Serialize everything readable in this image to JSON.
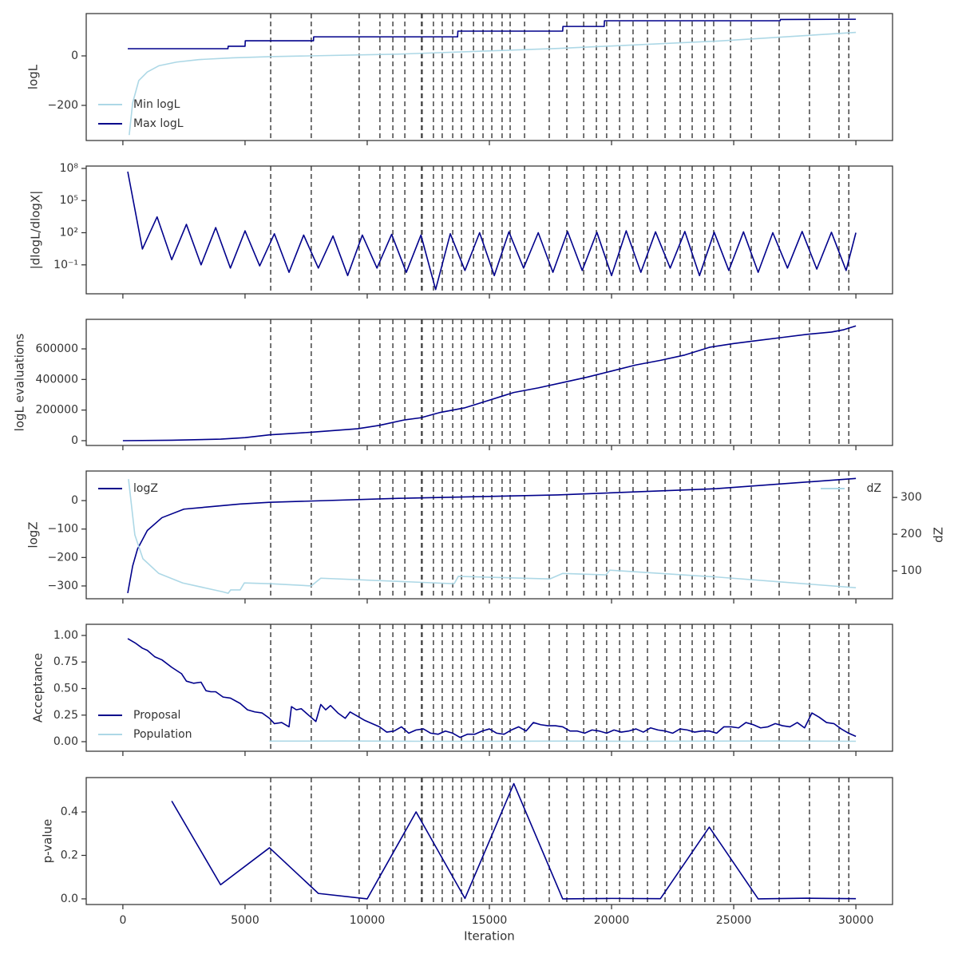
{
  "chart_data": [
    {
      "type": "line",
      "ylabel": "logL",
      "xlim": [
        -1500,
        31500
      ],
      "xticks": [
        0,
        5000,
        10000,
        15000,
        20000,
        25000,
        30000
      ],
      "ylim": [
        -342,
        171
      ],
      "yticks": [
        {
          "value": -200,
          "label": "−200"
        },
        0
      ],
      "legend": "lower left",
      "vlines": [
        6050,
        7710,
        9670,
        10520,
        11050,
        11540,
        12220,
        12250,
        12710,
        13070,
        13500,
        13860,
        14350,
        14740,
        15100,
        15520,
        15850,
        16440,
        17450,
        18170,
        18860,
        19380,
        19800,
        20330,
        20880,
        21470,
        22190,
        22810,
        23300,
        23820,
        24180,
        24870,
        25720,
        26860,
        28100,
        29310,
        29710
      ],
      "series": [
        {
          "name": "Min logL",
          "color": "#add8e6",
          "x": [
            260,
            400,
            650,
            1000,
            1470,
            2200,
            3100,
            4500,
            6050,
            11270,
            17800,
            24350,
            30000
          ],
          "values": [
            -320,
            -190,
            -100,
            -65,
            -40,
            -25,
            -15,
            -8,
            -3,
            7,
            30,
            60,
            95
          ]
        },
        {
          "name": "Max logL",
          "color": "#00008b",
          "x": [
            200,
            4300,
            4310,
            5000,
            5010,
            7800,
            7810,
            13700,
            13710,
            18000,
            18010,
            19700,
            19710,
            26900,
            26910,
            30000
          ],
          "values": [
            29,
            29,
            39,
            39,
            61,
            61,
            77,
            77,
            100,
            100,
            119,
            119,
            142,
            142,
            147,
            148
          ]
        }
      ]
    },
    {
      "type": "line",
      "ylabel": "|dlogL/dlogX|",
      "yscale": "log",
      "xlim": [
        -1500,
        31500
      ],
      "xticks": [
        0,
        5000,
        10000,
        15000,
        20000,
        25000,
        30000
      ],
      "ylim": [
        0.0002,
        166000000
      ],
      "yticks": [
        {
          "value": 0.1,
          "label": "10⁻¹"
        },
        {
          "value": 100,
          "label": "10²"
        },
        {
          "value": 100000,
          "label": "10⁵"
        },
        {
          "value": 100000000,
          "label": "10⁸"
        }
      ],
      "vlines": [
        6050,
        7710,
        9670,
        10520,
        11050,
        11540,
        12220,
        12250,
        12710,
        13070,
        13500,
        13860,
        14350,
        14740,
        15100,
        15520,
        15850,
        16440,
        17450,
        18170,
        18860,
        19380,
        19800,
        20330,
        20880,
        21470,
        22190,
        22810,
        23300,
        23820,
        24180,
        24870,
        25720,
        26860,
        28100,
        29310,
        29710
      ],
      "series": [
        {
          "color": "#00008b",
          "x": [
            200,
            800,
            1400,
            2000,
            2600,
            3200,
            3800,
            4400,
            5000,
            5600,
            6200,
            6800,
            7400,
            8000,
            8600,
            9200,
            9800,
            10400,
            11000,
            11600,
            12200,
            12800,
            13400,
            14000,
            14600,
            15200,
            15800,
            16400,
            17000,
            17600,
            18200,
            18800,
            19400,
            20000,
            20600,
            21200,
            21800,
            22400,
            23000,
            23600,
            24200,
            24800,
            25400,
            26000,
            26600,
            27200,
            27800,
            28400,
            29000,
            29600,
            30000
          ],
          "values": [
            50000000,
            3,
            3000,
            0.3,
            600,
            0.1,
            300,
            0.05,
            150,
            0.08,
            80,
            0.02,
            60,
            0.05,
            50,
            0.01,
            60,
            0.05,
            70,
            0.02,
            60,
            0.0005,
            80,
            0.03,
            100,
            0.01,
            120,
            0.05,
            100,
            0.02,
            130,
            0.03,
            110,
            0.01,
            150,
            0.02,
            120,
            0.05,
            130,
            0.01,
            110,
            0.03,
            120,
            0.02,
            100,
            0.05,
            130,
            0.04,
            110,
            0.03,
            100
          ]
        }
      ]
    },
    {
      "type": "line",
      "ylabel": "logL evaluations",
      "xlim": [
        -1500,
        31500
      ],
      "xticks": [
        0,
        5000,
        10000,
        15000,
        20000,
        25000,
        30000
      ],
      "ylim": [
        -31300,
        793000
      ],
      "yticks": [
        0,
        200000,
        400000,
        600000
      ],
      "vlines": [
        6050,
        7710,
        9670,
        10520,
        11050,
        11540,
        12220,
        12250,
        12710,
        13070,
        13500,
        13860,
        14350,
        14740,
        15100,
        15520,
        15850,
        16440,
        17450,
        18170,
        18860,
        19380,
        19800,
        20330,
        20880,
        21470,
        22190,
        22810,
        23300,
        23820,
        24180,
        24870,
        25720,
        26860,
        28100,
        29310,
        29710
      ],
      "series": [
        {
          "color": "#00008b",
          "x": [
            0,
            2000,
            4000,
            5000,
            6000,
            7700,
            9600,
            10500,
            11500,
            12200,
            13000,
            14000,
            15000,
            16000,
            17000,
            18000,
            19000,
            20000,
            21000,
            22000,
            23000,
            24000,
            25000,
            26000,
            27000,
            28000,
            29000,
            29500,
            30000
          ],
          "values": [
            0,
            3000,
            10000,
            20000,
            38000,
            55000,
            78000,
            100000,
            135000,
            150000,
            185000,
            215000,
            265000,
            315000,
            345000,
            380000,
            415000,
            455000,
            495000,
            525000,
            560000,
            610000,
            635000,
            655000,
            675000,
            695000,
            710000,
            725000,
            750000
          ]
        }
      ]
    },
    {
      "type": "line",
      "ylabel": "logZ",
      "y2label": "dZ",
      "xlim": [
        -1500,
        31500
      ],
      "xticks": [
        0,
        5000,
        10000,
        15000,
        20000,
        25000,
        30000
      ],
      "ylim": [
        -345,
        104
      ],
      "yticks": [
        {
          "value": -300,
          "label": "−300"
        },
        {
          "value": -200,
          "label": "−200"
        },
        {
          "value": -100,
          "label": "−100"
        },
        0
      ],
      "y2lim": [
        24,
        372
      ],
      "y2ticks": [
        100,
        200,
        300
      ],
      "legend": "upper left",
      "legend2": "upper right",
      "vlines": [
        6050,
        7710,
        9670,
        10520,
        11050,
        11540,
        12220,
        12250,
        12710,
        13070,
        13500,
        13860,
        14350,
        14740,
        15100,
        15520,
        15850,
        16440,
        17450,
        18170,
        18860,
        19380,
        19800,
        20330,
        20880,
        21470,
        22190,
        22810,
        23300,
        23820,
        24180,
        24870,
        25720,
        26860,
        28100,
        29310,
        29710
      ],
      "series": [
        {
          "name": "logZ",
          "color": "#00008b",
          "x": [
            200,
            400,
            600,
            1000,
            1600,
            2500,
            4800,
            6000,
            11300,
            17800,
            24300,
            30000
          ],
          "values": [
            -325,
            -230,
            -170,
            -105,
            -60,
            -30,
            -12,
            -6,
            8,
            20,
            42,
            78
          ]
        },
        {
          "name": "dZ",
          "color": "#add8e6",
          "axis": "y2",
          "x": [
            230,
            490,
            820,
            1470,
            2450,
            4080,
            4310,
            4410,
            4800,
            4970,
            6050,
            7710,
            8100,
            13560,
            13730,
            17480,
            18000,
            19770,
            19930,
            24350,
            30000
          ],
          "values": [
            350,
            198,
            133,
            93,
            67,
            43,
            39,
            48,
            48,
            67,
            65,
            59,
            80,
            65,
            85,
            78,
            93,
            89,
            102,
            83,
            54
          ]
        }
      ]
    },
    {
      "type": "line",
      "ylabel": "Acceptance",
      "xlim": [
        -1500,
        31500
      ],
      "xticks": [
        0,
        5000,
        10000,
        15000,
        20000,
        25000,
        30000
      ],
      "ylim": [
        -0.09,
        1.105
      ],
      "yticks": [
        {
          "value": 0,
          "label": "0.00"
        },
        {
          "value": 0.25,
          "label": "0.25"
        },
        {
          "value": 0.5,
          "label": "0.50"
        },
        {
          "value": 0.75,
          "label": "0.75"
        },
        {
          "value": 1,
          "label": "1.00"
        }
      ],
      "legend": "lower left",
      "vlines": [
        6050,
        7710,
        9670,
        10520,
        11050,
        11540,
        12220,
        12250,
        12710,
        13070,
        13500,
        13860,
        14350,
        14740,
        15100,
        15520,
        15850,
        16440,
        17450,
        18170,
        18860,
        19380,
        19800,
        20330,
        20880,
        21470,
        22190,
        22810,
        23300,
        23820,
        24180,
        24870,
        25720,
        26860,
        28100,
        29310,
        29710
      ],
      "series": [
        {
          "name": "Proposal",
          "color": "#00008b",
          "x": [
            200,
            500,
            800,
            1000,
            1300,
            1600,
            2000,
            2400,
            2600,
            2900,
            3200,
            3400,
            3600,
            3800,
            4100,
            4400,
            4800,
            5100,
            5400,
            5700,
            6000,
            6200,
            6500,
            6800,
            6900,
            7100,
            7300,
            7500,
            7700,
            7900,
            8100,
            8300,
            8500,
            8800,
            9100,
            9300,
            9600,
            9900,
            10200,
            10500,
            10800,
            11100,
            11400,
            11700,
            12000,
            12300,
            12600,
            12900,
            13200,
            13500,
            13800,
            14100,
            14400,
            14700,
            15000,
            15300,
            15600,
            15900,
            16200,
            16500,
            16800,
            17100,
            17400,
            17700,
            18000,
            18300,
            18600,
            18900,
            19200,
            19500,
            19800,
            20100,
            20400,
            20700,
            21000,
            21300,
            21600,
            21900,
            22200,
            22500,
            22800,
            23100,
            23400,
            23700,
            24000,
            24300,
            24600,
            24900,
            25200,
            25500,
            25800,
            26100,
            26400,
            26700,
            27000,
            27300,
            27600,
            27900,
            28200,
            28500,
            28800,
            29100,
            29400,
            29700,
            30000
          ],
          "values": [
            0.97,
            0.93,
            0.88,
            0.86,
            0.8,
            0.77,
            0.7,
            0.64,
            0.57,
            0.55,
            0.56,
            0.48,
            0.47,
            0.47,
            0.42,
            0.41,
            0.36,
            0.3,
            0.28,
            0.27,
            0.22,
            0.17,
            0.18,
            0.14,
            0.33,
            0.3,
            0.31,
            0.27,
            0.23,
            0.19,
            0.35,
            0.3,
            0.34,
            0.27,
            0.22,
            0.28,
            0.24,
            0.2,
            0.17,
            0.14,
            0.09,
            0.1,
            0.14,
            0.08,
            0.11,
            0.12,
            0.08,
            0.07,
            0.1,
            0.08,
            0.04,
            0.07,
            0.07,
            0.1,
            0.12,
            0.08,
            0.07,
            0.11,
            0.14,
            0.1,
            0.18,
            0.16,
            0.15,
            0.15,
            0.14,
            0.1,
            0.1,
            0.08,
            0.11,
            0.1,
            0.08,
            0.11,
            0.09,
            0.1,
            0.12,
            0.09,
            0.13,
            0.11,
            0.1,
            0.08,
            0.12,
            0.11,
            0.09,
            0.1,
            0.1,
            0.08,
            0.14,
            0.14,
            0.13,
            0.18,
            0.16,
            0.13,
            0.14,
            0.17,
            0.15,
            0.14,
            0.18,
            0.13,
            0.27,
            0.23,
            0.18,
            0.17,
            0.12,
            0.08,
            0.05
          ]
        },
        {
          "name": "Population",
          "color": "#add8e6",
          "x": [
            6000,
            9000,
            12000,
            15000,
            18000,
            21000,
            24000,
            27000,
            30000
          ],
          "values": [
            0.005,
            0.006,
            0.004,
            0.004,
            0.005,
            0.004,
            0.005,
            0.006,
            0.004
          ]
        }
      ]
    },
    {
      "type": "line",
      "ylabel": "p-value",
      "xlabel": "Iteration",
      "xticklabels": true,
      "xlim": [
        -1500,
        31500
      ],
      "xticks": [
        0,
        5000,
        10000,
        15000,
        20000,
        25000,
        30000
      ],
      "ylim": [
        -0.026,
        0.558
      ],
      "yticks": [
        {
          "value": 0,
          "label": "0.0"
        },
        {
          "value": 0.2,
          "label": "0.2"
        },
        {
          "value": 0.4,
          "label": "0.4"
        }
      ],
      "vlines": [
        6050,
        7710,
        9670,
        10520,
        11050,
        11540,
        12220,
        12250,
        12710,
        13070,
        13500,
        13860,
        14350,
        14740,
        15100,
        15520,
        15850,
        16440,
        17450,
        18170,
        18860,
        19380,
        19800,
        20330,
        20880,
        21470,
        22190,
        22810,
        23300,
        23820,
        24180,
        24870,
        25720,
        26860,
        28100,
        29310,
        29710
      ],
      "series": [
        {
          "color": "#00008b",
          "x": [
            2000,
            4000,
            6000,
            8000,
            10000,
            12000,
            14000,
            16000,
            18000,
            20000,
            22000,
            24000,
            26000,
            28000,
            30000
          ],
          "values": [
            0.45,
            0.065,
            0.235,
            0.025,
            0,
            0.4,
            0.002,
            0.53,
            0,
            0.002,
            0.001,
            0.33,
            0,
            0.003,
            0.001
          ]
        }
      ]
    }
  ]
}
